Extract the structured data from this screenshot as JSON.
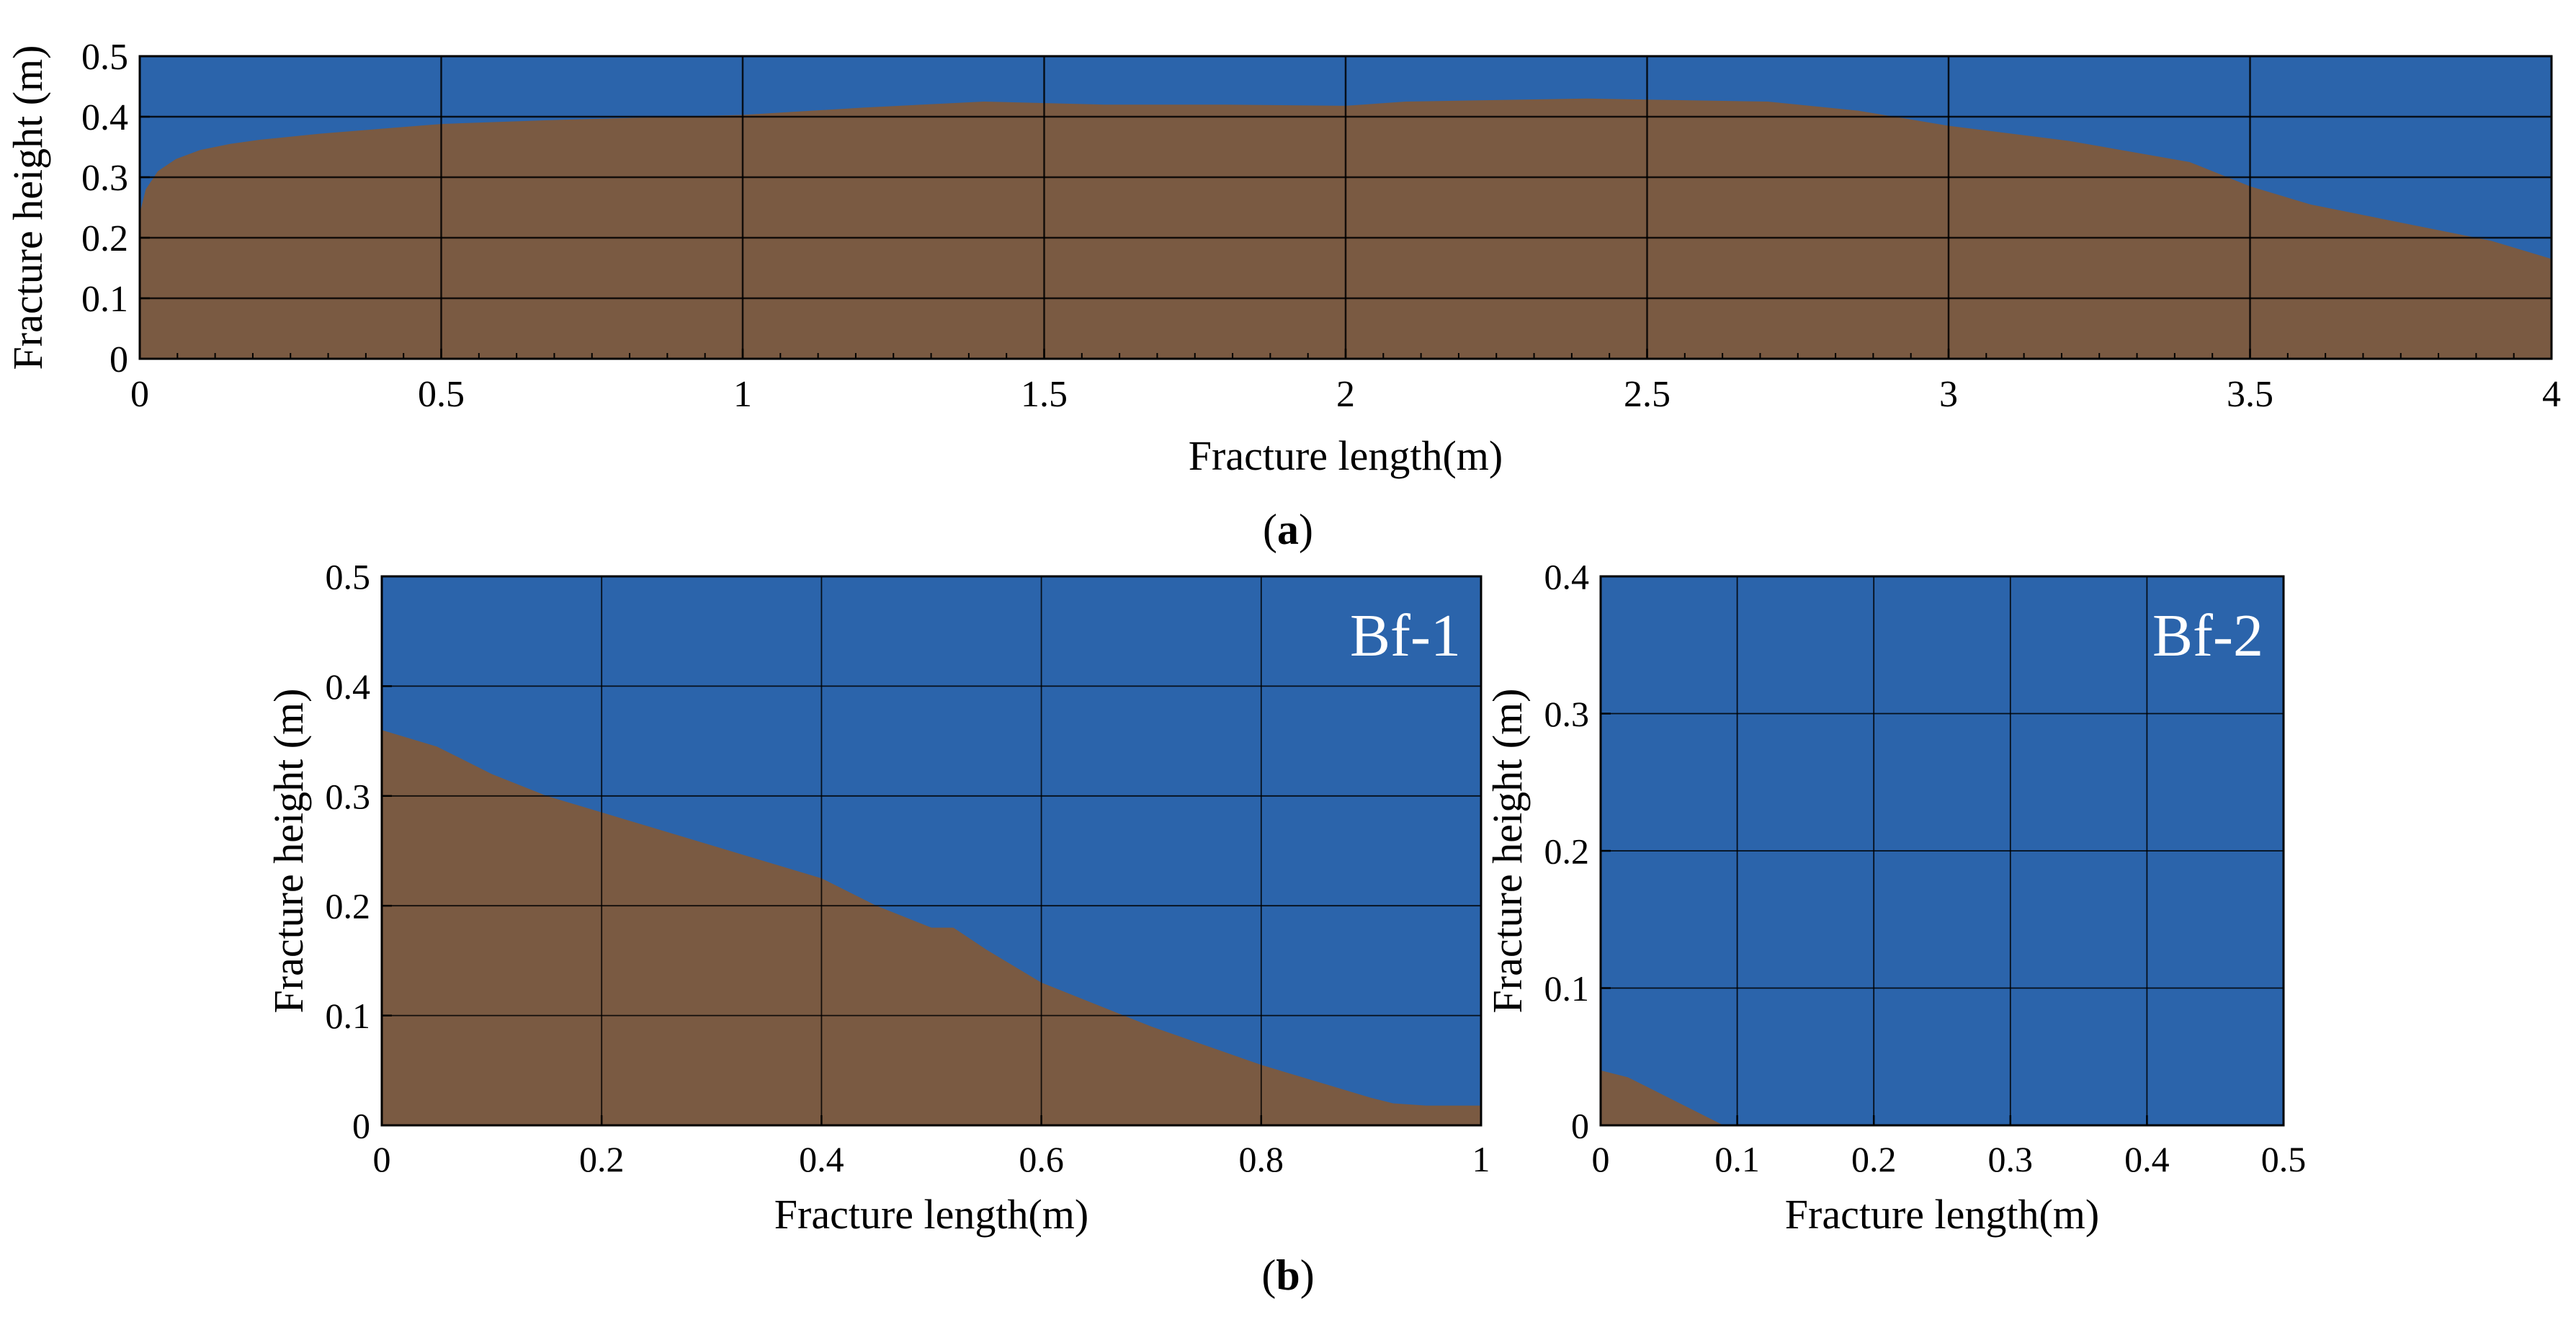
{
  "colors": {
    "fluid": "#2b64ab",
    "proppant": "#7a5a42",
    "grid": "#000000",
    "panel_label": "#ffffff"
  },
  "figure": {
    "label_a": "a",
    "label_b": "b"
  },
  "chart_data": [
    {
      "id": "a",
      "type": "area",
      "xlabel": "Fracture length(m)",
      "ylabel": "Fracture height (m)",
      "xlim": [
        0,
        4
      ],
      "ylim": [
        0,
        0.5
      ],
      "x_ticks": [
        0,
        0.5,
        1,
        1.5,
        2,
        2.5,
        3,
        3.5,
        4
      ],
      "x_tick_labels": [
        "0",
        "0.5",
        "1",
        "1.5",
        "2",
        "2.5",
        "3",
        "3.5",
        "4"
      ],
      "y_ticks": [
        0,
        0.1,
        0.2,
        0.3,
        0.4,
        0.5
      ],
      "y_tick_labels": [
        "0",
        "0.1",
        "0.2",
        "0.3",
        "0.4",
        "0.5"
      ],
      "grid": true,
      "series": [
        {
          "x": [
            0,
            0.01,
            0.03,
            0.06,
            0.1,
            0.15,
            0.2,
            0.3,
            0.4,
            0.5,
            0.7,
            1.0,
            1.2,
            1.4,
            1.6,
            1.8,
            2.0,
            2.1,
            2.4,
            2.7,
            2.85,
            3.0,
            3.2,
            3.4,
            3.5,
            3.6,
            3.8,
            3.9,
            4.0
          ],
          "y": [
            0.24,
            0.28,
            0.31,
            0.33,
            0.345,
            0.355,
            0.362,
            0.372,
            0.38,
            0.388,
            0.395,
            0.403,
            0.415,
            0.425,
            0.42,
            0.42,
            0.418,
            0.425,
            0.43,
            0.425,
            0.41,
            0.385,
            0.36,
            0.325,
            0.285,
            0.255,
            0.215,
            0.195,
            0.165
          ]
        }
      ]
    },
    {
      "id": "b1",
      "type": "area",
      "title": "Bf-1",
      "xlabel": "Fracture length(m)",
      "ylabel": "Fracture height (m)",
      "xlim": [
        0,
        1
      ],
      "ylim": [
        0,
        0.5
      ],
      "x_ticks": [
        0,
        0.2,
        0.4,
        0.6,
        0.8,
        1
      ],
      "x_tick_labels": [
        "0",
        "0.2",
        "0.4",
        "0.6",
        "0.8",
        "1"
      ],
      "y_ticks": [
        0,
        0.1,
        0.2,
        0.3,
        0.4,
        0.5
      ],
      "y_tick_labels": [
        "0",
        "0.1",
        "0.2",
        "0.3",
        "0.4",
        "0.5"
      ],
      "grid": true,
      "series": [
        {
          "x": [
            0,
            0.05,
            0.1,
            0.15,
            0.2,
            0.3,
            0.4,
            0.45,
            0.5,
            0.52,
            0.55,
            0.6,
            0.7,
            0.8,
            0.85,
            0.9,
            0.92,
            0.95,
            1.0
          ],
          "y": [
            0.36,
            0.345,
            0.32,
            0.3,
            0.285,
            0.255,
            0.225,
            0.2,
            0.18,
            0.18,
            0.16,
            0.13,
            0.09,
            0.055,
            0.04,
            0.025,
            0.02,
            0.018,
            0.018
          ]
        }
      ]
    },
    {
      "id": "b2",
      "type": "area",
      "title": "Bf-2",
      "xlabel": "Fracture length(m)",
      "ylabel": "Fracture height (m)",
      "xlim": [
        0,
        0.5
      ],
      "ylim": [
        0,
        0.4
      ],
      "x_ticks": [
        0,
        0.1,
        0.2,
        0.3,
        0.4,
        0.5
      ],
      "x_tick_labels": [
        "0",
        "0.1",
        "0.2",
        "0.3",
        "0.4",
        "0.5"
      ],
      "y_ticks": [
        0,
        0.1,
        0.2,
        0.3,
        0.4
      ],
      "y_tick_labels": [
        "0",
        "0.1",
        "0.2",
        "0.3",
        "0.4"
      ],
      "grid": true,
      "series": [
        {
          "x": [
            0,
            0.02,
            0.05,
            0.08,
            0.09
          ],
          "y": [
            0.04,
            0.035,
            0.02,
            0.005,
            0
          ]
        }
      ]
    }
  ]
}
